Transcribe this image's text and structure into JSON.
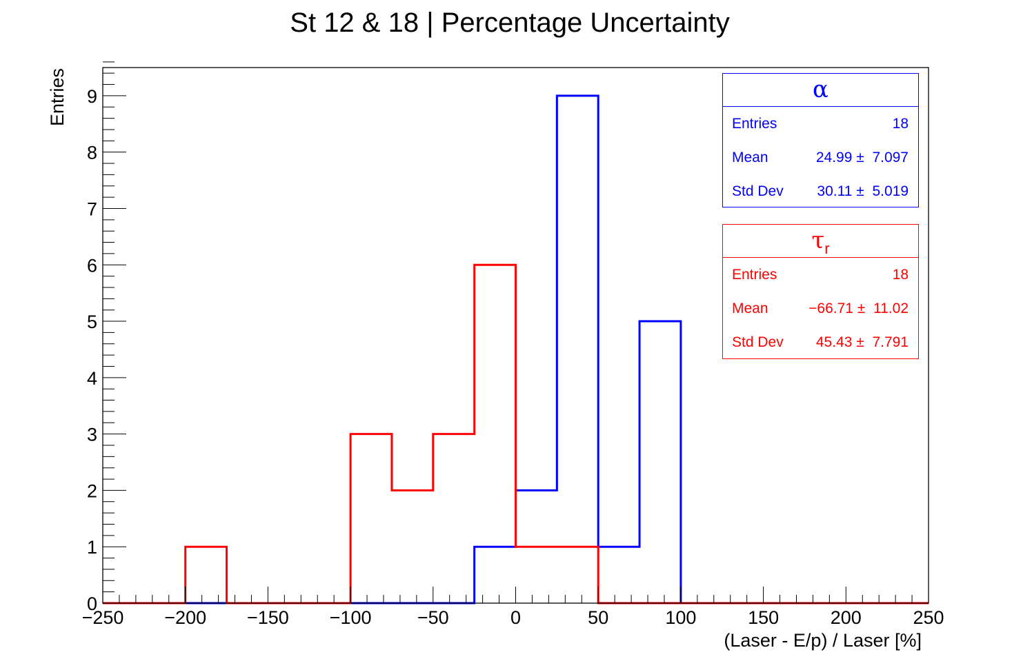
{
  "chart_data": {
    "type": "histogram",
    "title": "St 12 & 18 | Percentage Uncertainty",
    "xlabel": "(Laser - E/p) / Laser [%]",
    "ylabel": "Entries",
    "xlim": [
      -250,
      250
    ],
    "ylim": [
      0,
      9.5
    ],
    "bin_width": 25,
    "x_ticks": [
      -250,
      -200,
      -150,
      -100,
      -50,
      0,
      50,
      100,
      150,
      200,
      250
    ],
    "x_tick_labels": [
      "−250",
      "−200",
      "−150",
      "−100",
      "−50",
      "0",
      "50",
      "100",
      "150",
      "200",
      "250"
    ],
    "y_ticks": [
      0,
      1,
      2,
      3,
      4,
      5,
      6,
      7,
      8,
      9
    ],
    "y_tick_labels": [
      "0",
      "1",
      "2",
      "3",
      "4",
      "5",
      "6",
      "7",
      "8",
      "9"
    ],
    "grid": false,
    "legend_position": "top-right",
    "bin_edges": [
      -250,
      -225,
      -200,
      -175,
      -150,
      -125,
      -100,
      -75,
      -50,
      -25,
      0,
      25,
      50,
      75,
      100,
      125,
      150,
      175,
      200,
      225,
      250
    ],
    "series": [
      {
        "name": "α",
        "color": "#0000ff",
        "values": [
          0,
          0,
          0,
          0,
          0,
          0,
          0,
          0,
          0,
          1,
          2,
          9,
          1,
          5,
          0,
          0,
          0,
          0,
          0,
          0
        ]
      },
      {
        "name": "τ",
        "name_subscript": "r",
        "color": "#ff0000",
        "values": [
          0,
          0,
          1,
          0,
          0,
          0,
          3,
          2,
          3,
          6,
          1,
          1,
          0,
          0,
          0,
          0,
          0,
          0,
          0,
          0
        ]
      }
    ]
  },
  "stats": [
    {
      "name": "α",
      "subscript": "",
      "color": "#0000ff",
      "rows": [
        {
          "label": "Entries",
          "value": "18"
        },
        {
          "label": "Mean",
          "value": "24.99 ±  7.097"
        },
        {
          "label": "Std Dev",
          "value": "30.11 ±  5.019"
        }
      ]
    },
    {
      "name": "τ",
      "subscript": "r",
      "color": "#ff0000",
      "rows": [
        {
          "label": "Entries",
          "value": "18"
        },
        {
          "label": "Mean",
          "value": "−66.71 ±  11.02"
        },
        {
          "label": "Std Dev",
          "value": "45.43 ±  7.791"
        }
      ]
    }
  ]
}
